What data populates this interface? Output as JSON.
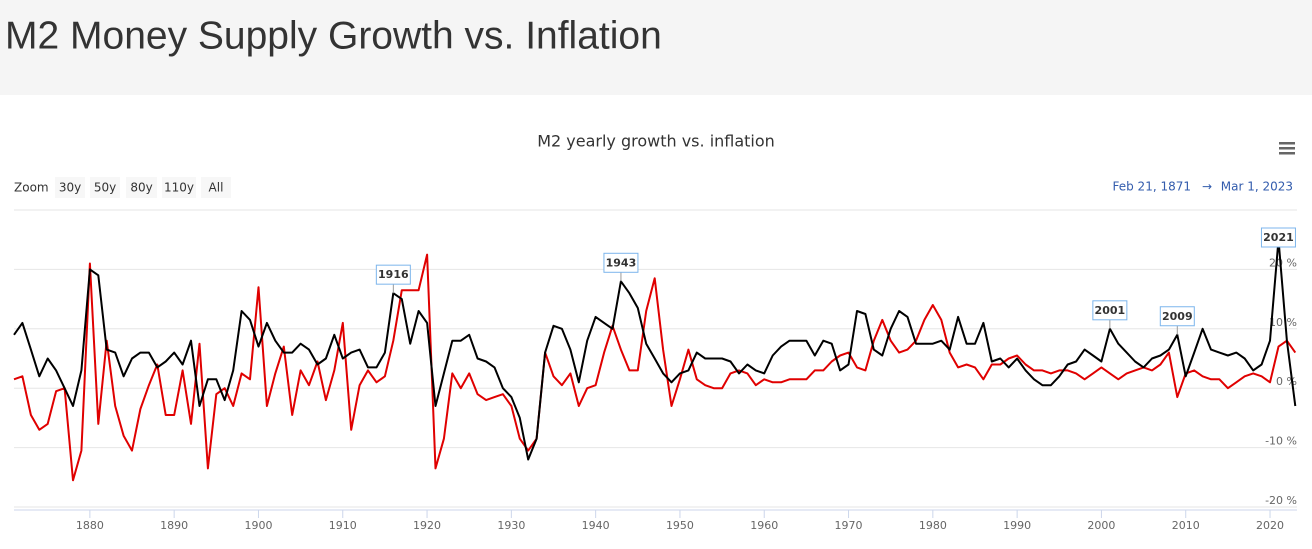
{
  "page_title": "M2 Money Supply Growth vs. Inflation",
  "zoom": {
    "label": "Zoom",
    "buttons": [
      "30y",
      "50y",
      "80y",
      "110y",
      "All"
    ]
  },
  "range": {
    "from": "Feb 21, 1871",
    "sep": "→",
    "to": "Mar 1, 2023"
  },
  "chart_data": {
    "type": "line",
    "title": "M2 yearly growth vs. inflation",
    "x": [
      1871,
      1872,
      1873,
      1874,
      1875,
      1876,
      1877,
      1878,
      1879,
      1880,
      1881,
      1882,
      1883,
      1884,
      1885,
      1886,
      1887,
      1888,
      1889,
      1890,
      1891,
      1892,
      1893,
      1894,
      1895,
      1896,
      1897,
      1898,
      1899,
      1900,
      1901,
      1902,
      1903,
      1904,
      1905,
      1906,
      1907,
      1908,
      1909,
      1910,
      1911,
      1912,
      1913,
      1914,
      1915,
      1916,
      1917,
      1918,
      1919,
      1920,
      1921,
      1922,
      1923,
      1924,
      1925,
      1926,
      1927,
      1928,
      1929,
      1930,
      1931,
      1932,
      1933,
      1934,
      1935,
      1936,
      1937,
      1938,
      1939,
      1940,
      1941,
      1942,
      1943,
      1944,
      1945,
      1946,
      1947,
      1948,
      1949,
      1950,
      1951,
      1952,
      1953,
      1954,
      1955,
      1956,
      1957,
      1958,
      1959,
      1960,
      1961,
      1962,
      1963,
      1964,
      1965,
      1966,
      1967,
      1968,
      1969,
      1970,
      1971,
      1972,
      1973,
      1974,
      1975,
      1976,
      1977,
      1978,
      1979,
      1980,
      1981,
      1982,
      1983,
      1984,
      1985,
      1986,
      1987,
      1988,
      1989,
      1990,
      1991,
      1992,
      1993,
      1994,
      1995,
      1996,
      1997,
      1998,
      1999,
      2000,
      2001,
      2002,
      2003,
      2004,
      2005,
      2006,
      2007,
      2008,
      2009,
      2010,
      2011,
      2012,
      2013,
      2014,
      2015,
      2016,
      2017,
      2018,
      2019,
      2020,
      2021,
      2022,
      2023
    ],
    "xlim": [
      1871,
      2023.2
    ],
    "xticks": [
      1880,
      1890,
      1900,
      1910,
      1920,
      1930,
      1940,
      1950,
      1960,
      1970,
      1980,
      1990,
      2000,
      2010,
      2020
    ],
    "ylim": [
      -20.5,
      30
    ],
    "yticks": [
      {
        "value": -20,
        "label": "-20 %"
      },
      {
        "value": -10,
        "label": "-10 %"
      },
      {
        "value": 0,
        "label": "0 %"
      },
      {
        "value": 10,
        "label": "10 %"
      },
      {
        "value": 20,
        "label": "20 %"
      }
    ],
    "grid": true,
    "series": [
      {
        "color": "#000000",
        "values": [
          9,
          11,
          6.5,
          2,
          5,
          3,
          0,
          -3,
          3,
          20,
          19,
          6.5,
          6,
          2,
          5,
          6,
          6,
          3.5,
          4.5,
          6,
          4,
          8,
          -3,
          1.5,
          1.5,
          -2,
          3,
          13,
          11.5,
          7,
          11,
          8,
          6,
          6,
          7.5,
          6.5,
          4,
          5,
          9,
          5,
          6,
          6.5,
          3.5,
          3.5,
          6,
          16,
          15,
          7.5,
          13,
          11,
          -3,
          2.5,
          8,
          8,
          9,
          5,
          4.5,
          3.5,
          0,
          -1.5,
          -5,
          -12,
          -8.5,
          6,
          10.5,
          10,
          6.5,
          1,
          8,
          12,
          11,
          10,
          18,
          16,
          13.5,
          7.5,
          5,
          2.5,
          1,
          2.5,
          3,
          6,
          5,
          5,
          5,
          4.5,
          2.5,
          4,
          3,
          2.5,
          5.5,
          7,
          8,
          8,
          8,
          5.5,
          8,
          7.5,
          3,
          4,
          13,
          12.5,
          6.5,
          5.5,
          10,
          13,
          12,
          7.5,
          7.5,
          7.5,
          8,
          6.5,
          12,
          7.5,
          7.5,
          11,
          4.5,
          5,
          3.5,
          5,
          3,
          1.5,
          0.5,
          0.5,
          2,
          4,
          4.5,
          6.5,
          5.5,
          4.5,
          10,
          7.5,
          6,
          4.5,
          3.5,
          5,
          5.5,
          6.5,
          9,
          2,
          6,
          10,
          6.5,
          6,
          5.5,
          6,
          5,
          3,
          4,
          8,
          25,
          8,
          -3
        ]
      },
      {
        "color": "#e00000",
        "values": [
          1.5,
          2,
          -4.5,
          -7,
          -6,
          -0.5,
          0,
          -15.5,
          -10.5,
          21,
          -6,
          8,
          -3,
          -8,
          -10.5,
          -3.5,
          0.5,
          4,
          -4.5,
          -4.5,
          3,
          -6,
          7.5,
          -13.5,
          -1,
          0,
          -3,
          2.5,
          1.5,
          17,
          -3,
          2.5,
          7,
          -4.5,
          3,
          0.5,
          4.5,
          -2,
          3,
          11,
          -7,
          0.5,
          3,
          1,
          2,
          8,
          16.5,
          16.5,
          16.5,
          22.5,
          -13.5,
          -8.5,
          2.5,
          0,
          2.5,
          -1,
          -2,
          -1.5,
          -1,
          -3,
          -8.5,
          -10.5,
          -8.5,
          6,
          2,
          0.5,
          2.5,
          -3,
          0,
          0.5,
          6,
          10.5,
          6.5,
          3,
          3,
          13,
          18.5,
          6.5,
          -3,
          1.5,
          6.5,
          1.5,
          0.5,
          0,
          0,
          2.5,
          3,
          2.5,
          0.5,
          1.5,
          1,
          1,
          1.5,
          1.5,
          1.5,
          3,
          3,
          4.5,
          5.5,
          6,
          3.5,
          3,
          8,
          11.5,
          8,
          6,
          6.5,
          8,
          11.5,
          14,
          11.5,
          6,
          3.5,
          4,
          3.5,
          1.5,
          4,
          4,
          5,
          5.5,
          4,
          3,
          3,
          2.5,
          3,
          3,
          2.5,
          1.5,
          2.5,
          3.5,
          2.5,
          1.5,
          2.5,
          3,
          3.5,
          3,
          4,
          6,
          -1.5,
          2.5,
          3,
          2,
          1.5,
          1.5,
          0,
          1,
          2,
          2.5,
          2,
          1,
          7,
          8,
          6
        ]
      }
    ],
    "flags": [
      1916,
      1943,
      2001,
      2009,
      2021
    ]
  }
}
